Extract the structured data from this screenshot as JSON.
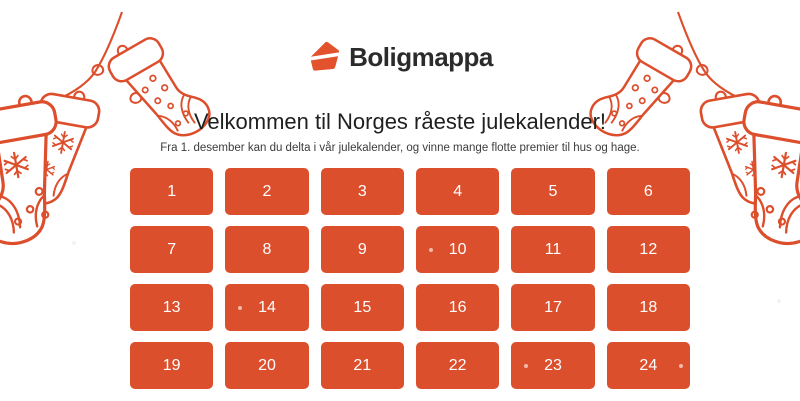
{
  "logo": {
    "text": "Boligmappa",
    "icon": "boligmappa-house-folder-icon",
    "icon_color": "#E2532D",
    "text_color": "#2B2B2B"
  },
  "hero": {
    "title": "Velkommen til Norges råeste julekalender!",
    "subtitle": "Fra 1. desember kan du delta i vår julekalender, og vinne mange flotte premier til hus og hage."
  },
  "calendar": {
    "columns": 6,
    "days": [
      {
        "label": "1",
        "dot": null
      },
      {
        "label": "2",
        "dot": null
      },
      {
        "label": "3",
        "dot": null
      },
      {
        "label": "4",
        "dot": null
      },
      {
        "label": "5",
        "dot": null
      },
      {
        "label": "6",
        "dot": null
      },
      {
        "label": "7",
        "dot": null
      },
      {
        "label": "8",
        "dot": null
      },
      {
        "label": "9",
        "dot": null
      },
      {
        "label": "10",
        "dot": "left"
      },
      {
        "label": "11",
        "dot": null
      },
      {
        "label": "12",
        "dot": null
      },
      {
        "label": "13",
        "dot": null
      },
      {
        "label": "14",
        "dot": "left"
      },
      {
        "label": "15",
        "dot": null
      },
      {
        "label": "16",
        "dot": null
      },
      {
        "label": "17",
        "dot": null
      },
      {
        "label": "18",
        "dot": null
      },
      {
        "label": "19",
        "dot": null
      },
      {
        "label": "20",
        "dot": null
      },
      {
        "label": "21",
        "dot": null
      },
      {
        "label": "22",
        "dot": null
      },
      {
        "label": "23",
        "dot": "left"
      },
      {
        "label": "24",
        "dot": "right"
      }
    ]
  },
  "decor": {
    "left": "hanging-christmas-stockings-line-art",
    "right": "hanging-christmas-stockings-line-art-mirrored",
    "line_color": "#DC4E2C"
  },
  "colors": {
    "accent": "#DC4F2D",
    "day_button_bg": "#DC4F2D",
    "day_button_text": "#FFFFFF",
    "page_bg": "#FFFFFF"
  }
}
